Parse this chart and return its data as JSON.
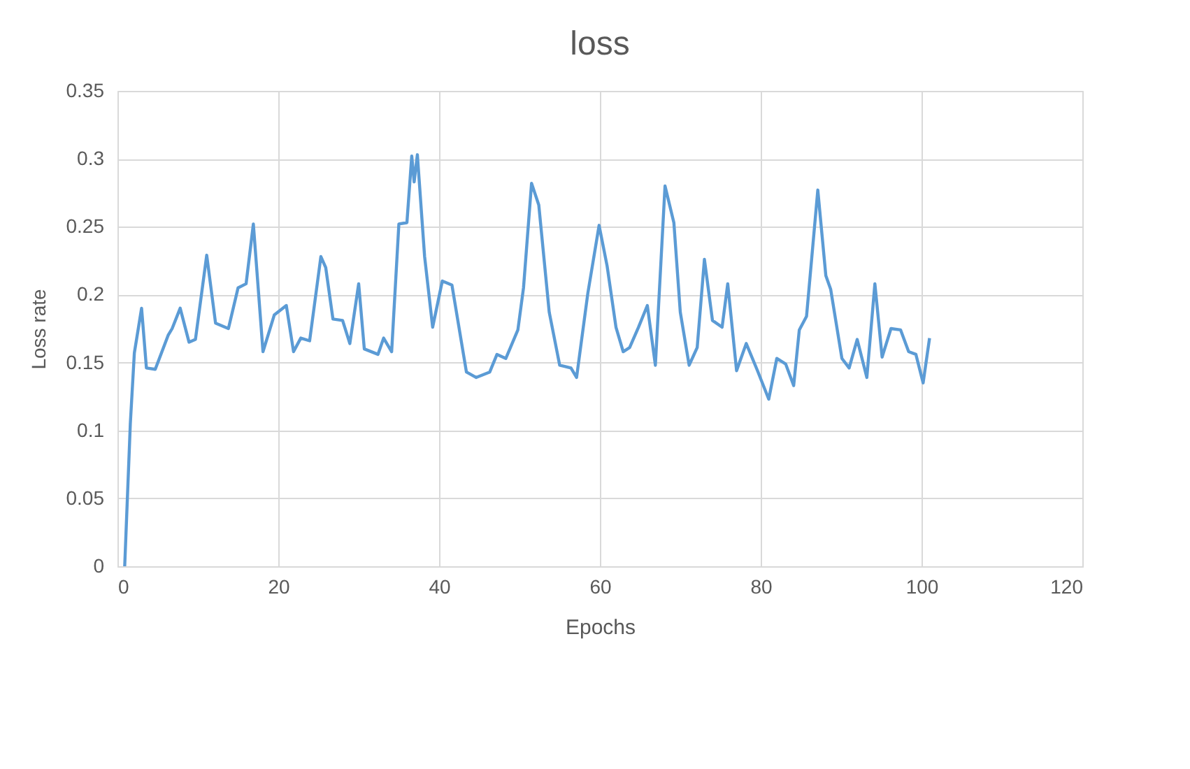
{
  "chart_data": {
    "type": "line",
    "title": "loss",
    "xlabel": "Epochs",
    "ylabel": "Loss rate",
    "x": [
      0.9,
      1.6,
      2.1,
      3,
      3.6,
      4.7,
      6.3,
      6.8,
      7.8,
      8.9,
      9.7,
      11.1,
      12.2,
      13.8,
      15,
      16,
      16.9,
      18.1,
      19.5,
      21,
      21.9,
      22.8,
      23.9,
      25.3,
      25.9,
      26.8,
      28,
      28.9,
      30,
      30.7,
      32.4,
      33.1,
      34.1,
      35,
      36,
      36.6,
      36.9,
      37.3,
      38.2,
      39.2,
      40.4,
      41.6,
      43.4,
      44.6,
      46.3,
      47.2,
      48.3,
      49.8,
      50.5,
      51.5,
      52.4,
      53.7,
      55,
      56.4,
      57.1,
      58.5,
      59.9,
      60.9,
      62,
      62.9,
      63.7,
      64.8,
      65.9,
      66.9,
      68.1,
      69.2,
      70,
      71.1,
      72.1,
      73,
      74,
      75.2,
      75.9,
      77,
      78.2,
      79.6,
      81,
      82,
      83.1,
      84.1,
      84.8,
      85.7,
      87.1,
      88.1,
      88.7,
      90.1,
      91,
      92,
      93.2,
      94.2,
      95.1,
      96.2,
      97.4,
      98.4,
      99.3,
      100.2,
      101
    ],
    "series": [
      {
        "color": "#5b9bd5",
        "values": [
          0,
          0.105,
          0.157,
          0.19,
          0.146,
          0.145,
          0.17,
          0.175,
          0.19,
          0.165,
          0.167,
          0.229,
          0.179,
          0.175,
          0.205,
          0.208,
          0.252,
          0.158,
          0.185,
          0.192,
          0.158,
          0.168,
          0.166,
          0.228,
          0.22,
          0.182,
          0.181,
          0.164,
          0.208,
          0.16,
          0.156,
          0.168,
          0.158,
          0.252,
          0.253,
          0.302,
          0.283,
          0.303,
          0.228,
          0.176,
          0.21,
          0.207,
          0.143,
          0.139,
          0.143,
          0.156,
          0.153,
          0.174,
          0.205,
          0.282,
          0.266,
          0.187,
          0.148,
          0.146,
          0.139,
          0.201,
          0.251,
          0.221,
          0.176,
          0.158,
          0.161,
          0.176,
          0.192,
          0.148,
          0.28,
          0.253,
          0.187,
          0.148,
          0.161,
          0.226,
          0.181,
          0.176,
          0.208,
          0.144,
          0.164,
          0.144,
          0.123,
          0.153,
          0.149,
          0.133,
          0.174,
          0.184,
          0.277,
          0.214,
          0.204,
          0.153,
          0.146,
          0.167,
          0.139,
          0.208,
          0.154,
          0.175,
          0.174,
          0.158,
          0.156,
          0.135,
          0.168
        ]
      }
    ],
    "xlim": [
      0,
      120
    ],
    "xticks": [
      0,
      20,
      40,
      60,
      80,
      100,
      120
    ],
    "ylim": [
      0,
      0.35
    ],
    "yticks": [
      0,
      0.05,
      0.1,
      0.15,
      0.2,
      0.25,
      0.3,
      0.35
    ],
    "grid": true,
    "marker": "none",
    "line_style": "solid"
  }
}
